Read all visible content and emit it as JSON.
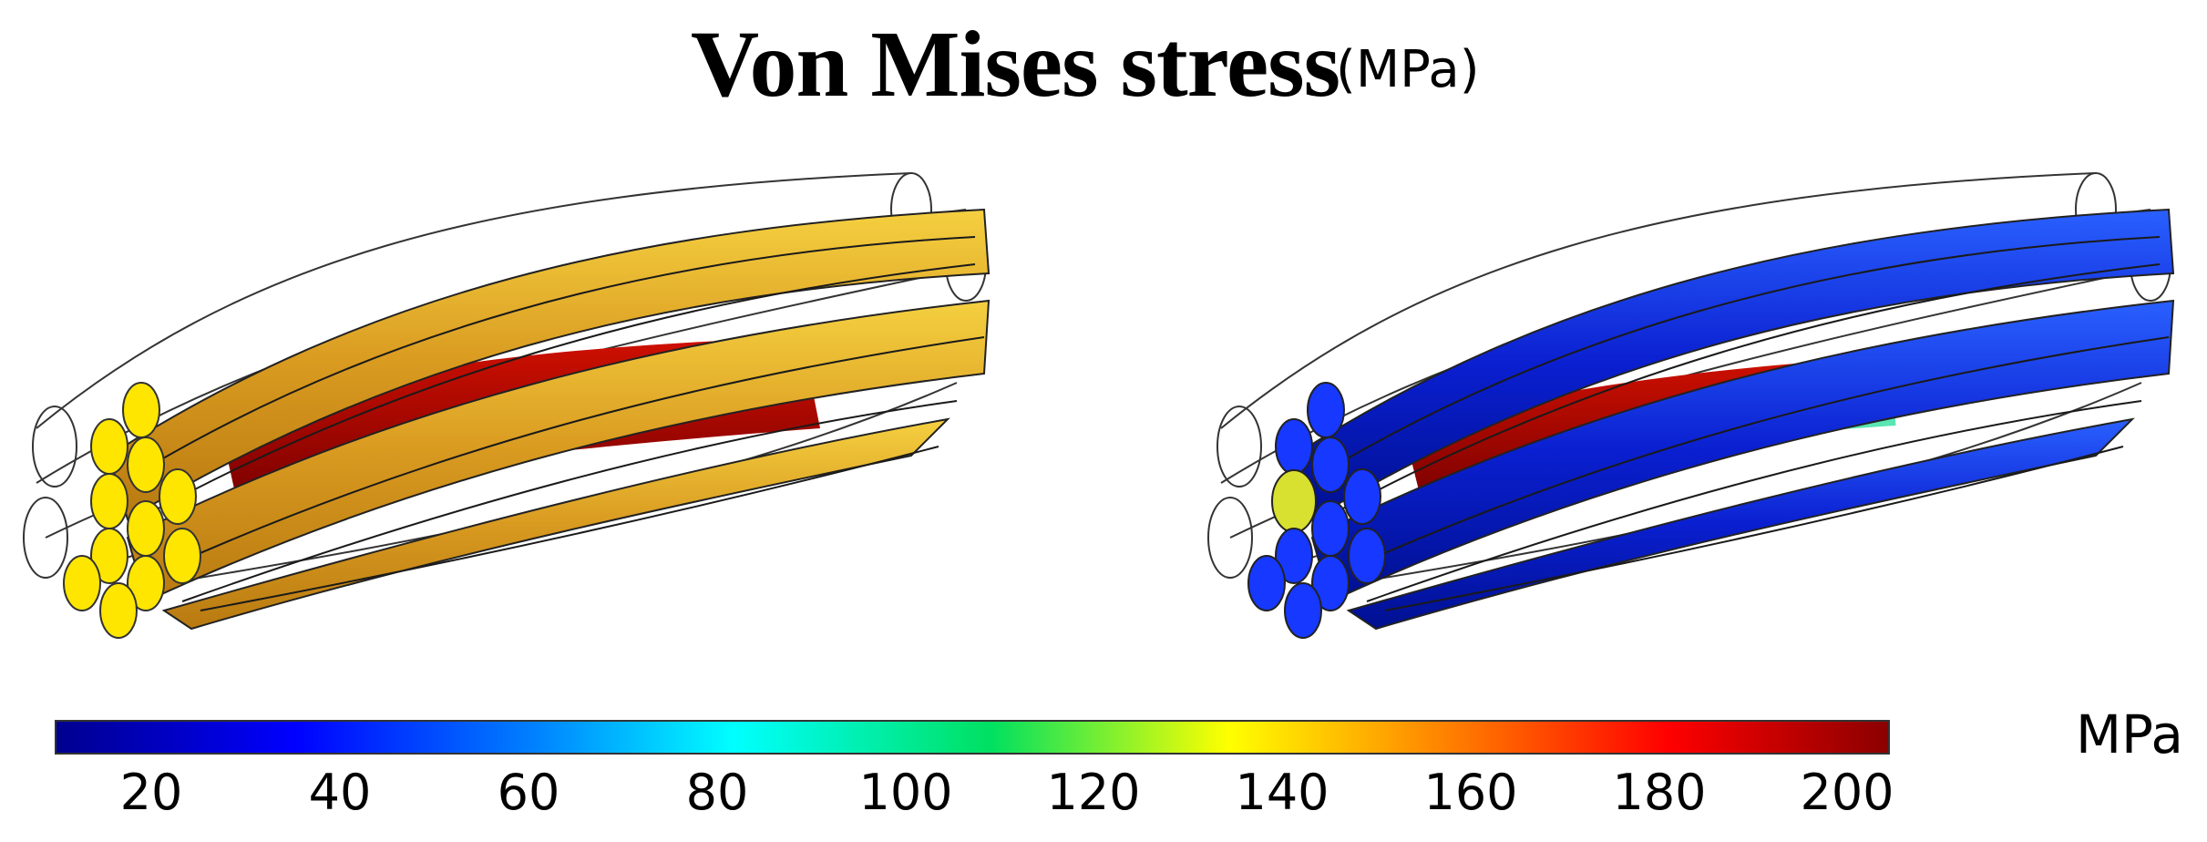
{
  "title": {
    "main": "Von Mises stress",
    "unit": "(MPa)"
  },
  "colorbar": {
    "unit_label": "MPa",
    "min": 10,
    "max": 205,
    "ticks": [
      "20",
      "40",
      "60",
      "80",
      "100",
      "120",
      "140",
      "160",
      "180",
      "200"
    ]
  },
  "models": [
    {
      "name": "left-wire-rope",
      "dominant_color": "#e0b020",
      "core_color": "#b00000"
    },
    {
      "name": "right-wire-rope",
      "dominant_color": "#0a2ad8",
      "core_color": "#c00000"
    }
  ]
}
